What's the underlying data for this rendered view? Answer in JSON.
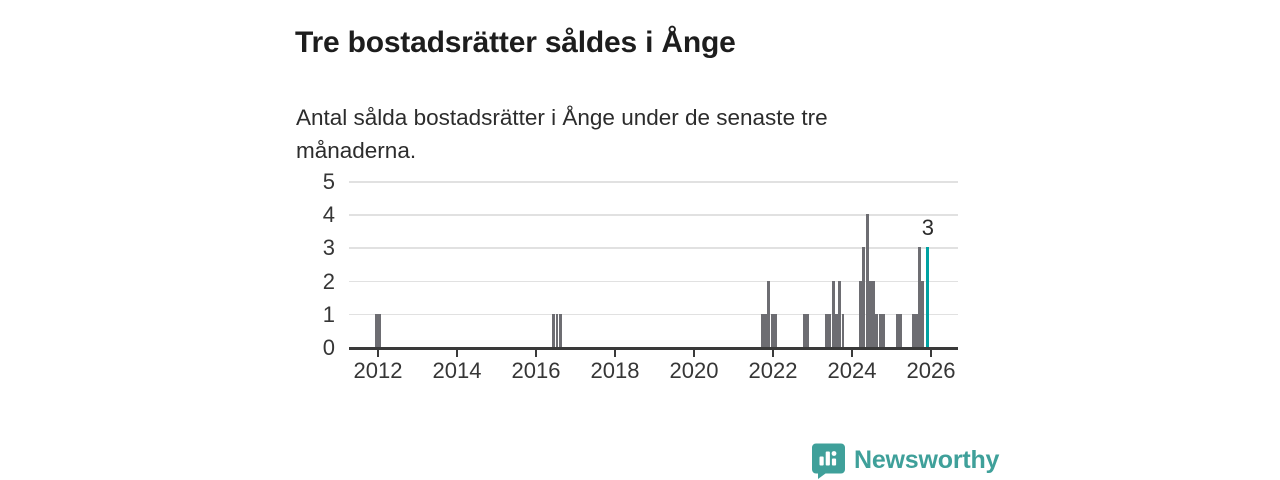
{
  "header": {
    "title": "Tre bostadsrätter såldes i Ånge",
    "subtitle": "Antal sålda bostadsrätter i Ånge under de senaste tre månaderna."
  },
  "footer": {
    "brand_name": "Newsworthy",
    "brand_icon": "chart-speech-bubble-icon",
    "brand_color": "#3fa09a"
  },
  "chart_data": {
    "type": "bar",
    "title": "Tre bostadsrätter såldes i Ånge",
    "subtitle": "Antal sålda bostadsrätter i Ånge under de senaste tre månaderna.",
    "xlabel": "",
    "ylabel": "",
    "grid": true,
    "x_ticks": [
      2012,
      2014,
      2016,
      2018,
      2020,
      2022,
      2024,
      2026
    ],
    "y_ticks": [
      0,
      1,
      2,
      3,
      4,
      5
    ],
    "ylim": [
      0,
      5
    ],
    "xlim": [
      2011.3,
      2026.7
    ],
    "colors": {
      "bar": "#6d6d72",
      "highlight": "#00a2a2",
      "gridline": "#e1e1e1",
      "axis": "#3a3a3a"
    },
    "bars": [
      {
        "x": 2011.96,
        "v": 1
      },
      {
        "x": 2012.04,
        "v": 1
      },
      {
        "x": 2016.45,
        "v": 1
      },
      {
        "x": 2016.53,
        "v": 1
      },
      {
        "x": 2016.62,
        "v": 1
      },
      {
        "x": 2021.73,
        "v": 1
      },
      {
        "x": 2021.81,
        "v": 1
      },
      {
        "x": 2021.89,
        "v": 2
      },
      {
        "x": 2021.98,
        "v": 1
      },
      {
        "x": 2022.06,
        "v": 1
      },
      {
        "x": 2022.8,
        "v": 1
      },
      {
        "x": 2022.88,
        "v": 1
      },
      {
        "x": 2023.35,
        "v": 1
      },
      {
        "x": 2023.43,
        "v": 1
      },
      {
        "x": 2023.52,
        "v": 2
      },
      {
        "x": 2023.6,
        "v": 1
      },
      {
        "x": 2023.68,
        "v": 2
      },
      {
        "x": 2023.77,
        "v": 1
      },
      {
        "x": 2024.22,
        "v": 2
      },
      {
        "x": 2024.3,
        "v": 3
      },
      {
        "x": 2024.38,
        "v": 4
      },
      {
        "x": 2024.47,
        "v": 2
      },
      {
        "x": 2024.55,
        "v": 2
      },
      {
        "x": 2024.63,
        "v": 1
      },
      {
        "x": 2024.72,
        "v": 1
      },
      {
        "x": 2024.8,
        "v": 1
      },
      {
        "x": 2025.15,
        "v": 1
      },
      {
        "x": 2025.23,
        "v": 1
      },
      {
        "x": 2025.56,
        "v": 1
      },
      {
        "x": 2025.63,
        "v": 1
      },
      {
        "x": 2025.71,
        "v": 3
      },
      {
        "x": 2025.79,
        "v": 2
      },
      {
        "x": 2025.92,
        "v": 3,
        "highlight": true,
        "label": "3"
      }
    ]
  }
}
